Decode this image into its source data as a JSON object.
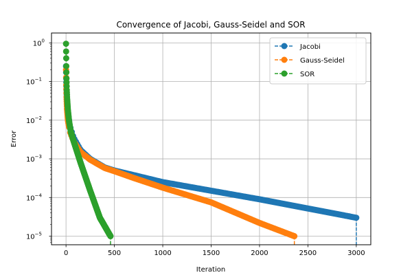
{
  "chart_data": {
    "type": "line",
    "title": "Convergence of Jacobi, Gauss-Seidel and SOR",
    "xlabel": "Iteration",
    "ylabel": "Error",
    "xlim": [
      -150,
      3150
    ],
    "ylim": [
      6e-06,
      1.8
    ],
    "yscale": "log",
    "grid": true,
    "legend_position": "top-right",
    "x_ticks": [
      0,
      500,
      1000,
      1500,
      2000,
      2500,
      3000
    ],
    "x_tick_labels": [
      "0",
      "500",
      "1000",
      "1500",
      "2000",
      "2500",
      "3000"
    ],
    "y_ticks": [
      1e-05,
      0.0001,
      0.001,
      0.01,
      0.1,
      1
    ],
    "y_tick_labels": [
      "10",
      "10",
      "10",
      "10",
      "10",
      "10"
    ],
    "y_tick_exponents": [
      "−5",
      "−4",
      "−3",
      "−2",
      "−1",
      "0"
    ],
    "series": [
      {
        "name": "Jacobi",
        "color": "#1f77b4",
        "final_iteration": 3000,
        "anchors": [
          [
            0,
            0.25
          ],
          [
            2,
            0.12
          ],
          [
            5,
            0.06
          ],
          [
            10,
            0.03
          ],
          [
            20,
            0.015
          ],
          [
            40,
            0.007
          ],
          [
            80,
            0.0035
          ],
          [
            150,
            0.0017
          ],
          [
            250,
            0.001
          ],
          [
            400,
            0.0006
          ],
          [
            500,
            0.0005
          ],
          [
            700,
            0.00038
          ],
          [
            1000,
            0.00025
          ],
          [
            1500,
            0.00015
          ],
          [
            2000,
            9e-05
          ],
          [
            2500,
            5.2e-05
          ],
          [
            3000,
            3e-05
          ]
        ]
      },
      {
        "name": "Gauss-Seidel",
        "color": "#ff7f0e",
        "final_iteration": 2360,
        "anchors": [
          [
            0,
            0.2
          ],
          [
            2,
            0.08
          ],
          [
            5,
            0.04
          ],
          [
            10,
            0.02
          ],
          [
            20,
            0.01
          ],
          [
            40,
            0.005
          ],
          [
            80,
            0.0028
          ],
          [
            150,
            0.0015
          ],
          [
            250,
            0.00095
          ],
          [
            400,
            0.00058
          ],
          [
            500,
            0.00048
          ],
          [
            700,
            0.00032
          ],
          [
            1000,
            0.00018
          ],
          [
            1500,
            7.5e-05
          ],
          [
            2000,
            2.2e-05
          ],
          [
            2360,
            1e-05
          ]
        ]
      },
      {
        "name": "SOR",
        "color": "#2ca02c",
        "final_iteration": 460,
        "anchors": [
          [
            0,
            0.95
          ],
          [
            1,
            0.6
          ],
          [
            2,
            0.4
          ],
          [
            3,
            0.25
          ],
          [
            5,
            0.12
          ],
          [
            8,
            0.06
          ],
          [
            12,
            0.035
          ],
          [
            20,
            0.018
          ],
          [
            30,
            0.01
          ],
          [
            50,
            0.005
          ],
          [
            80,
            0.0028
          ],
          [
            150,
            0.0008
          ],
          [
            250,
            0.00015
          ],
          [
            350,
            3e-05
          ],
          [
            460,
            1e-05
          ]
        ]
      }
    ]
  }
}
